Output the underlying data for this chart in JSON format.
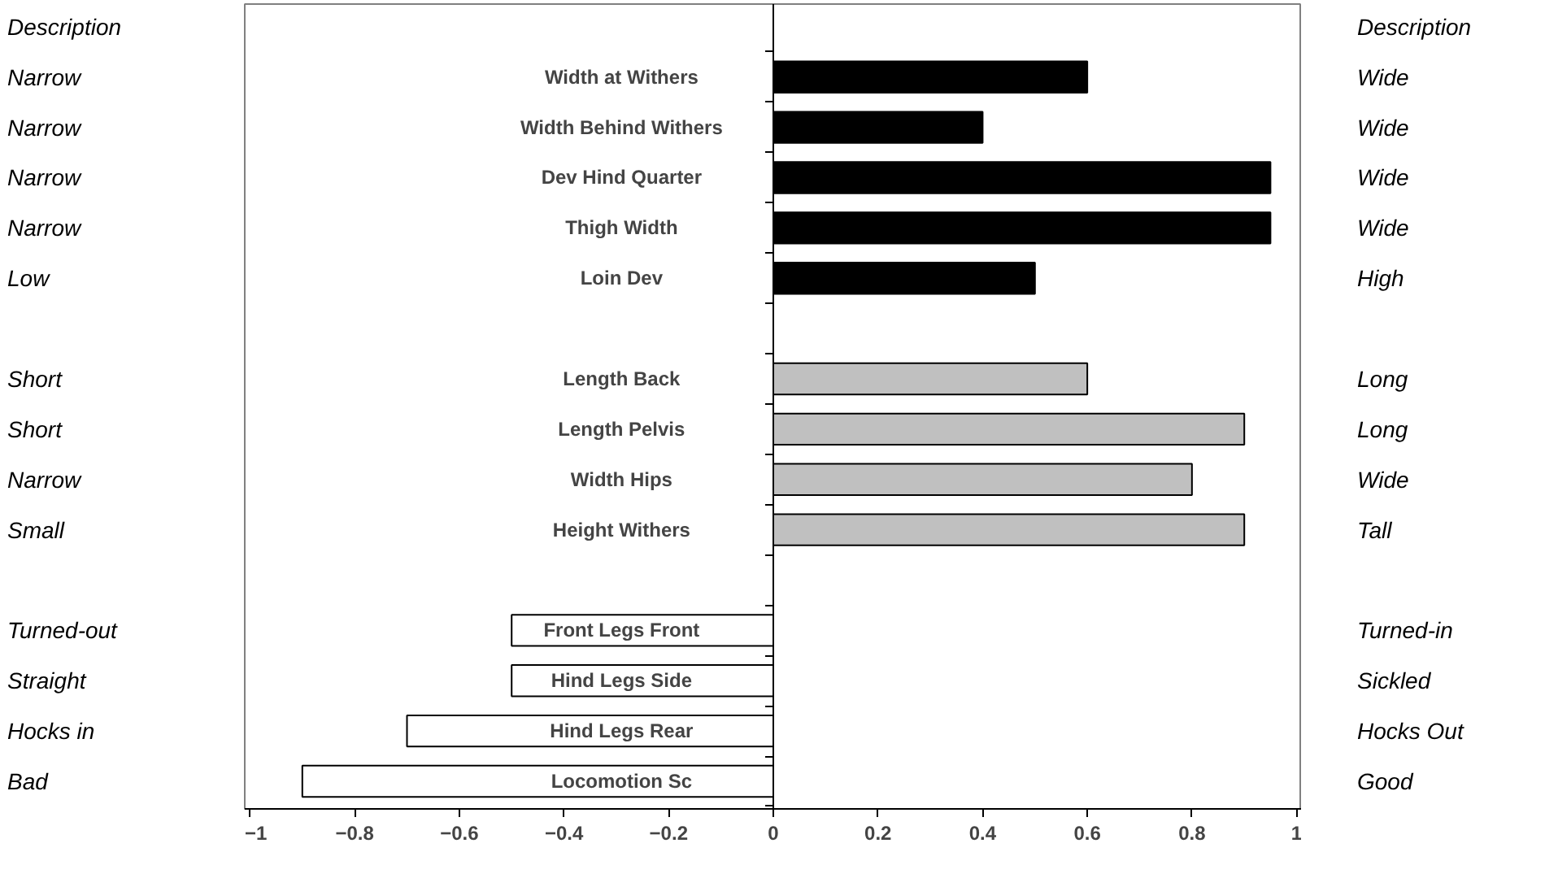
{
  "chart_data": {
    "type": "bar",
    "orientation": "horizontal",
    "categories": [
      "Width at Withers",
      "Width Behind Withers",
      "Dev Hind Quarter",
      "Thigh Width",
      "Loin Dev",
      null,
      "Length Back",
      "Length Pelvis",
      "Width Hips",
      "Height Withers",
      null,
      "Front Legs Front",
      "Hind Legs Side",
      "Hind Legs Rear",
      "Locomotion Sc"
    ],
    "values": [
      0.6,
      0.4,
      0.95,
      0.95,
      0.5,
      null,
      0.6,
      0.9,
      0.8,
      0.9,
      null,
      -0.5,
      -0.5,
      -0.7,
      -0.9
    ],
    "colors": [
      "#000000",
      "#000000",
      "#000000",
      "#000000",
      "#000000",
      "#ffffff",
      "#c0c0c0",
      "#c0c0c0",
      "#c0c0c0",
      "#c0c0c0",
      "#ffffff",
      "#ffffff",
      "#ffffff",
      "#ffffff",
      "#ffffff"
    ],
    "xlim": [
      -1.01,
      1.01
    ],
    "xticks": [
      -1,
      -0.8,
      -0.6,
      -0.4,
      -0.2,
      0,
      0.2,
      0.4,
      0.6,
      0.8,
      1
    ],
    "grid": false,
    "annotations": [
      "Description",
      "Description",
      "Narrow",
      "Wide",
      "Narrow",
      "Wide",
      "Narrow",
      "Wide",
      "Narrow",
      "Wide",
      "Low",
      "High",
      "Short",
      "Long",
      "Short",
      "Long",
      "Narrow",
      "Wide",
      "Small",
      "Tall",
      "Turned-out",
      "Turned-in",
      "Straight",
      "Sickled",
      "Hocks in",
      "Hocks Out",
      "Bad",
      "Good"
    ]
  }
}
